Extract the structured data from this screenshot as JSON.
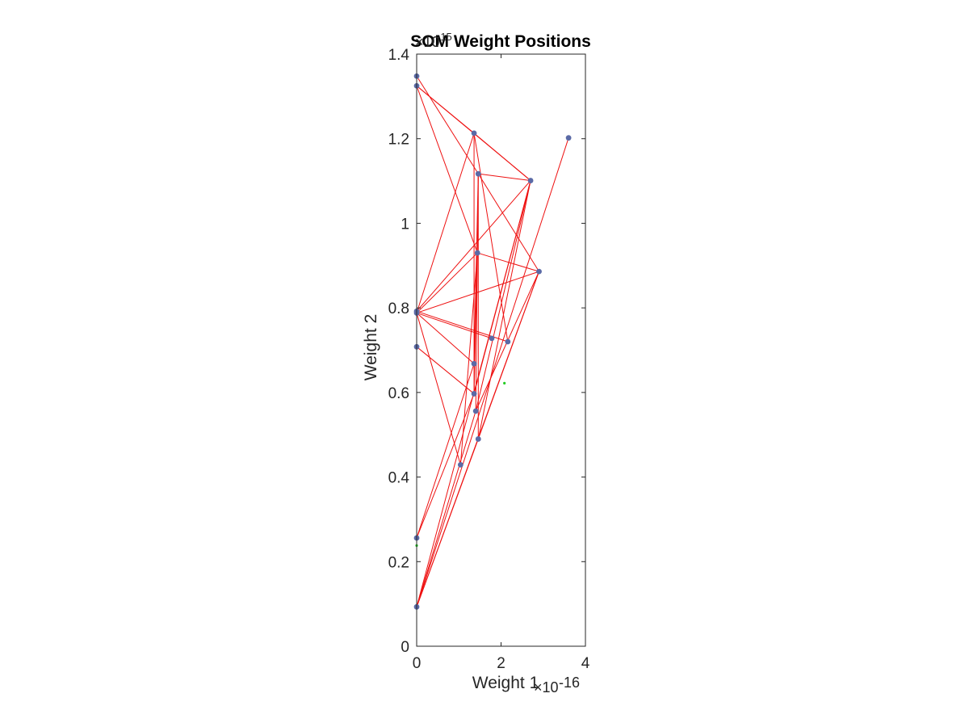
{
  "chart_data": {
    "type": "scatter",
    "title": "SOM Weight Positions",
    "xlabel": "Weight 1",
    "ylabel": "Weight 2",
    "xlim": [
      0,
      4
    ],
    "ylim": [
      0,
      1.4
    ],
    "x_multiplier": {
      "base": "×10",
      "exponent": "-16"
    },
    "y_multiplier": {
      "base": "×10",
      "exponent": "-15"
    },
    "x_ticks": [
      0,
      2,
      4
    ],
    "x_tick_labels": [
      "0",
      "2",
      "4"
    ],
    "y_ticks": [
      0,
      0.2,
      0.4,
      0.6,
      0.8,
      1.0,
      1.2,
      1.4
    ],
    "y_tick_labels": [
      "0",
      "0.2",
      "0.4",
      "0.6",
      "0.8",
      "1",
      "1.2",
      "1.4"
    ],
    "grid": false,
    "neuron_color": "#5b6aa6",
    "link_color": "#ee1111",
    "input_color": "#22cc22",
    "neurons": [
      {
        "x": 0.0,
        "y": 1.348
      },
      {
        "x": 0.0,
        "y": 1.325
      },
      {
        "x": 1.36,
        "y": 1.213
      },
      {
        "x": 3.6,
        "y": 1.202
      },
      {
        "x": 1.46,
        "y": 1.117
      },
      {
        "x": 2.7,
        "y": 1.101
      },
      {
        "x": 1.44,
        "y": 0.93
      },
      {
        "x": 2.9,
        "y": 0.886
      },
      {
        "x": 0.0,
        "y": 0.792
      },
      {
        "x": 0.0,
        "y": 0.788
      },
      {
        "x": 1.78,
        "y": 0.728
      },
      {
        "x": 2.16,
        "y": 0.72
      },
      {
        "x": 0.0,
        "y": 0.708
      },
      {
        "x": 1.36,
        "y": 0.668
      },
      {
        "x": 1.36,
        "y": 0.597
      },
      {
        "x": 1.4,
        "y": 0.556
      },
      {
        "x": 1.46,
        "y": 0.49
      },
      {
        "x": 1.04,
        "y": 0.429
      },
      {
        "x": 0.0,
        "y": 0.256
      },
      {
        "x": 0.0,
        "y": 0.093
      }
    ],
    "links": [
      [
        0,
        1
      ],
      [
        1,
        8
      ],
      [
        8,
        12
      ],
      [
        12,
        18
      ],
      [
        18,
        19
      ],
      [
        0,
        4
      ],
      [
        1,
        2
      ],
      [
        1,
        6
      ],
      [
        1,
        5
      ],
      [
        2,
        5
      ],
      [
        2,
        9
      ],
      [
        2,
        11
      ],
      [
        2,
        14
      ],
      [
        4,
        5
      ],
      [
        4,
        7
      ],
      [
        4,
        15
      ],
      [
        4,
        16
      ],
      [
        4,
        13
      ],
      [
        5,
        8
      ],
      [
        5,
        14
      ],
      [
        5,
        15
      ],
      [
        5,
        16
      ],
      [
        5,
        19
      ],
      [
        6,
        7
      ],
      [
        6,
        9
      ],
      [
        6,
        13
      ],
      [
        6,
        14
      ],
      [
        7,
        9
      ],
      [
        7,
        16
      ],
      [
        7,
        15
      ],
      [
        7,
        19
      ],
      [
        3,
        19
      ],
      [
        9,
        10
      ],
      [
        9,
        17
      ],
      [
        9,
        13
      ],
      [
        8,
        11
      ],
      [
        12,
        14
      ],
      [
        13,
        18
      ],
      [
        14,
        18
      ],
      [
        17,
        6
      ],
      [
        15,
        19
      ],
      [
        16,
        19
      ]
    ],
    "inputs": [
      {
        "x": 2.08,
        "y": 0.622
      },
      {
        "x": 0.0,
        "y": 0.238
      }
    ]
  }
}
